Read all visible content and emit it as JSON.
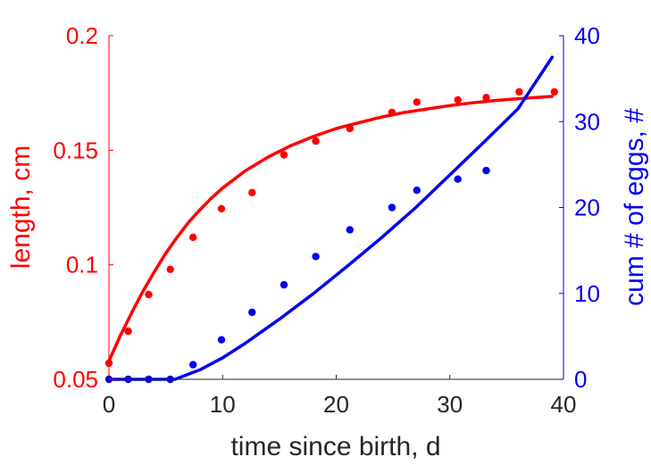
{
  "chart_data": {
    "type": "line",
    "xlabel": "time since birth, d",
    "xlim": [
      0,
      40
    ],
    "x_ticks": [
      "0",
      "10",
      "20",
      "30",
      "40"
    ],
    "left_axis": {
      "label": "length, cm",
      "color": "#ff0000",
      "ylim": [
        0.05,
        0.2
      ],
      "ticks": [
        "0.05",
        "0.1",
        "0.15",
        "0.2"
      ]
    },
    "right_axis": {
      "label": "cum # of eggs, #",
      "color": "#0000ee",
      "ylim": [
        0,
        40
      ],
      "ticks": [
        "0",
        "10",
        "20",
        "30",
        "40"
      ]
    },
    "series": [
      {
        "axis": "left",
        "kind": "points",
        "color": "#ff0000",
        "x": [
          0,
          1.7,
          3.5,
          5.4,
          7.4,
          9.9,
          12.6,
          15.4,
          18.2,
          21.2,
          24.9,
          27.1,
          30.7,
          33.2,
          36.1,
          39.2
        ],
        "y": [
          0.057,
          0.071,
          0.087,
          0.098,
          0.112,
          0.1245,
          0.1315,
          0.148,
          0.154,
          0.1595,
          0.1665,
          0.171,
          0.172,
          0.173,
          0.1755,
          0.1755
        ]
      },
      {
        "axis": "left",
        "kind": "line",
        "color": "#ff0000",
        "x": [
          0,
          1,
          2,
          3,
          4,
          5,
          6,
          7,
          8,
          9,
          10,
          12,
          14,
          16,
          18,
          20,
          22,
          24,
          26,
          28,
          30,
          32,
          34,
          36,
          39
        ],
        "y": [
          0.058,
          0.069,
          0.079,
          0.0885,
          0.097,
          0.105,
          0.112,
          0.1185,
          0.124,
          0.129,
          0.1335,
          0.141,
          0.147,
          0.152,
          0.156,
          0.1595,
          0.162,
          0.1645,
          0.1665,
          0.168,
          0.1695,
          0.1707,
          0.1717,
          0.1725,
          0.1735
        ]
      },
      {
        "axis": "right",
        "kind": "points",
        "color": "#0000ee",
        "x": [
          0,
          1.7,
          3.5,
          5.4,
          7.4,
          9.9,
          12.6,
          15.4,
          18.2,
          21.2,
          24.9,
          27.1,
          30.7,
          33.2
        ],
        "y": [
          0,
          0,
          0,
          0,
          1.7,
          4.6,
          7.8,
          11.0,
          14.3,
          17.4,
          20.0,
          22.0,
          23.3,
          24.3
        ]
      },
      {
        "axis": "right",
        "kind": "line",
        "color": "#0000ee",
        "x": [
          0,
          2,
          4,
          5.8,
          8,
          10,
          12,
          15,
          18,
          21,
          24,
          27,
          30,
          33,
          36,
          39
        ],
        "y": [
          0,
          0,
          0,
          0,
          1.1,
          2.5,
          4.2,
          7.0,
          10.0,
          13.2,
          16.5,
          20.0,
          23.8,
          27.6,
          31.5,
          37.5
        ]
      }
    ]
  }
}
